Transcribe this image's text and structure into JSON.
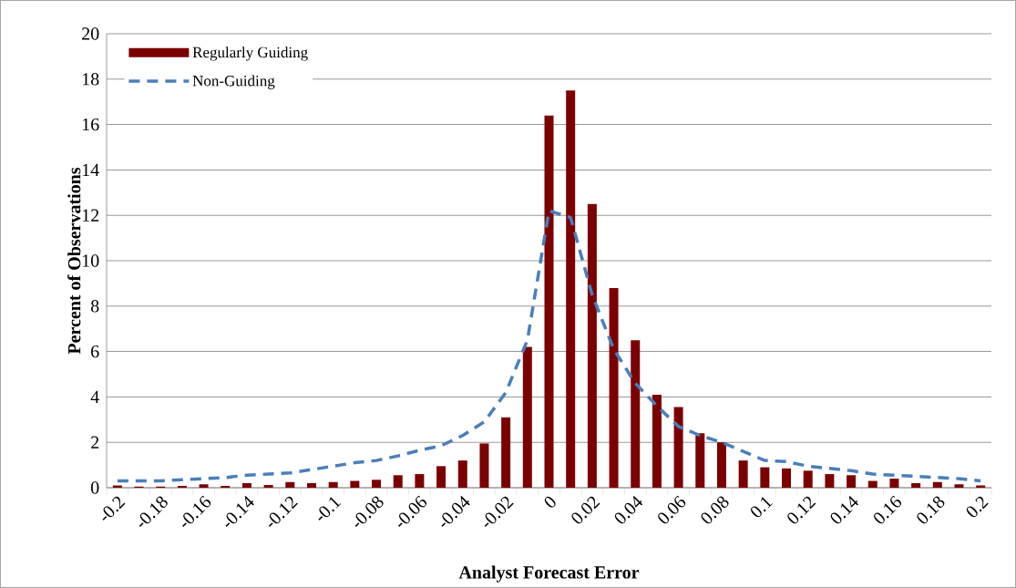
{
  "chart_data": {
    "type": "bar",
    "xlabel": "Analyst Forecast Error",
    "ylabel": "Percent of Observations",
    "categories": [
      "-0.2",
      null,
      "-0.18",
      null,
      "-0.16",
      null,
      "-0.14",
      null,
      "-0.12",
      null,
      "-0.1",
      null,
      "-0.08",
      null,
      "-0.06",
      null,
      "-0.04",
      null,
      "-0.02",
      null,
      "0",
      null,
      "0.02",
      null,
      "0.04",
      null,
      "0.06",
      null,
      "0.08",
      null,
      "0.1",
      null,
      "0.12",
      null,
      "0.14",
      null,
      "0.16",
      null,
      "0.18",
      null,
      "0.2"
    ],
    "series": [
      {
        "name": "Regularly Guiding",
        "color": "#7b0000",
        "values": [
          0.1,
          0.05,
          0.05,
          0.08,
          0.15,
          0.08,
          0.2,
          0.12,
          0.25,
          0.2,
          0.25,
          0.3,
          0.35,
          0.55,
          0.6,
          0.95,
          1.2,
          1.95,
          3.1,
          6.2,
          16.4,
          17.5,
          12.5,
          8.8,
          6.5,
          4.1,
          3.55,
          2.4,
          2.0,
          1.2,
          0.9,
          0.85,
          0.75,
          0.6,
          0.55,
          0.3,
          0.4,
          0.2,
          0.25,
          0.15,
          0.1
        ]
      },
      {
        "name": "Non-Guiding",
        "type": "line",
        "color": "#4a7ebb",
        "line_style": "dashed",
        "marker": "none",
        "values": [
          0.3,
          0.3,
          0.3,
          0.35,
          0.4,
          0.45,
          0.55,
          0.6,
          0.65,
          0.8,
          0.95,
          1.1,
          1.2,
          1.4,
          1.65,
          1.85,
          2.3,
          2.9,
          4.2,
          6.5,
          12.2,
          11.9,
          8.5,
          6.1,
          4.6,
          3.6,
          2.7,
          2.3,
          2.0,
          1.6,
          1.2,
          1.15,
          0.95,
          0.85,
          0.75,
          0.6,
          0.55,
          0.5,
          0.45,
          0.4,
          0.3
        ]
      }
    ],
    "ylim": [
      0,
      20
    ],
    "yticks": [
      0,
      2,
      4,
      6,
      8,
      10,
      12,
      14,
      16,
      18,
      20
    ],
    "grid": "y",
    "legend": "top left"
  }
}
